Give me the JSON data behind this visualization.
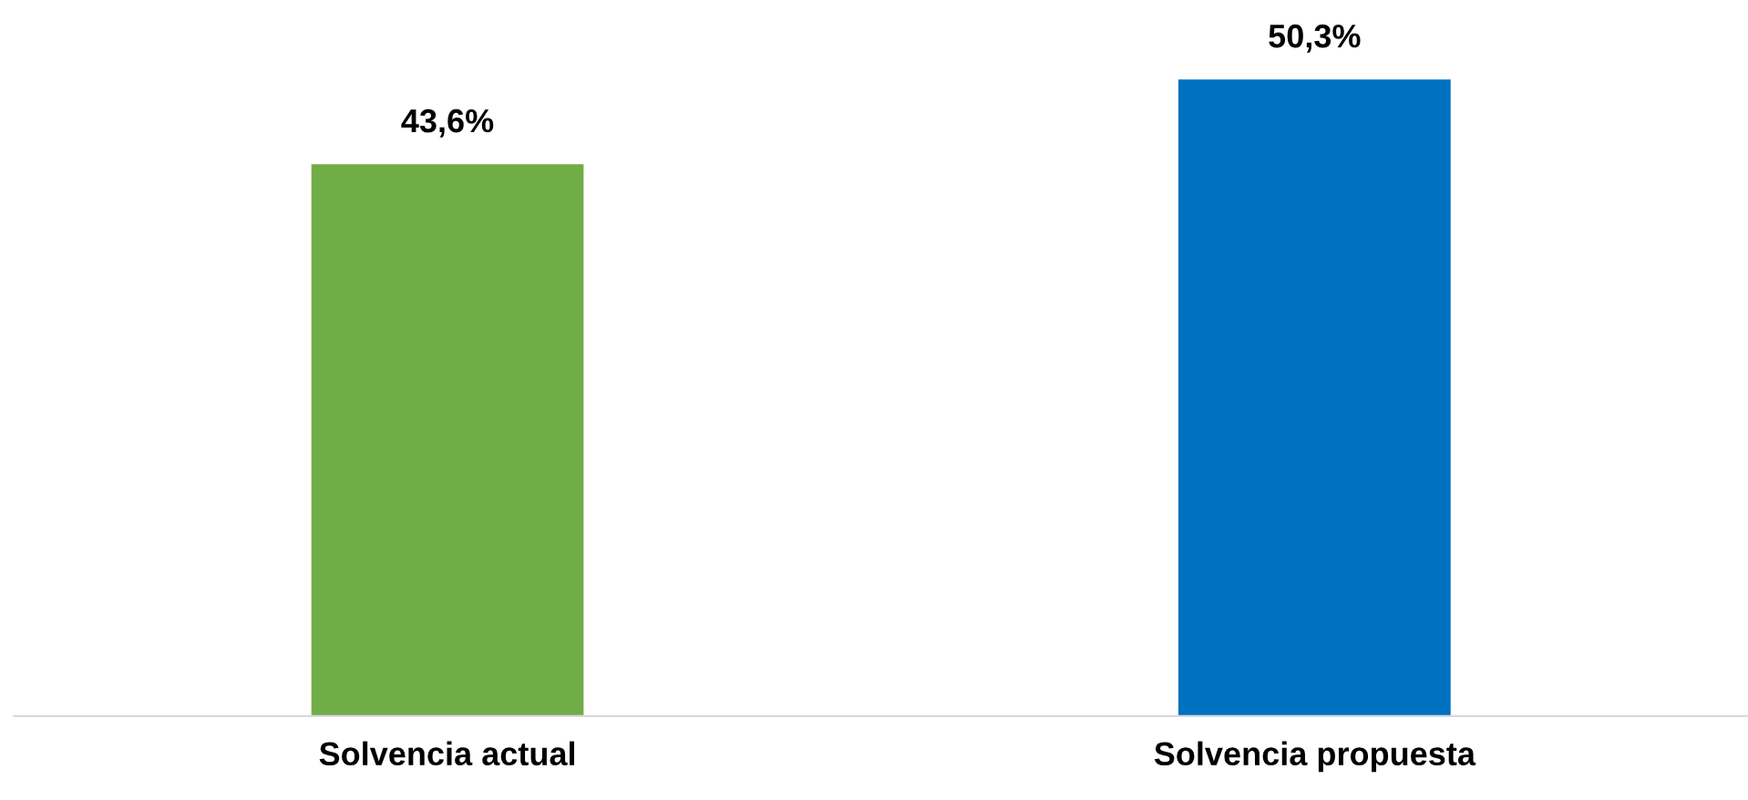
{
  "chart_data": {
    "type": "bar",
    "categories": [
      "Solvencia actual",
      "Solvencia propuesta"
    ],
    "values": [
      43.6,
      50.3
    ],
    "value_labels": [
      "43,6%",
      "50,3%"
    ],
    "colors": [
      "#70ad47",
      "#0070c0"
    ],
    "tick_labels": "x",
    "grid": false,
    "legend": false
  }
}
